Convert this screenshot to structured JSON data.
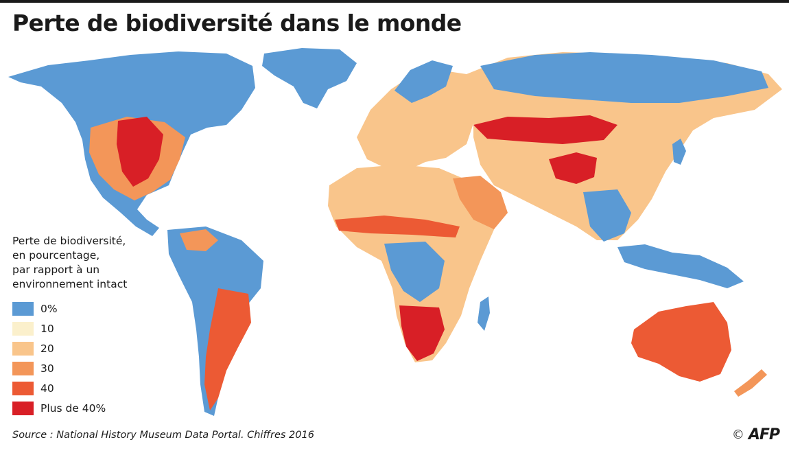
{
  "title": "Perte de biodiversité dans le monde",
  "legend": {
    "title_lines": [
      "Perte de biodiversité,",
      "en pourcentage,",
      "par rapport à un",
      "environnement intact"
    ],
    "items": [
      {
        "label": "0%",
        "color": "#5b9ad4"
      },
      {
        "label": "10",
        "color": "#fbf0cc"
      },
      {
        "label": "20",
        "color": "#f9c58b"
      },
      {
        "label": "30",
        "color": "#f39659"
      },
      {
        "label": "40",
        "color": "#ec5a34"
      },
      {
        "label": "Plus de 40%",
        "color": "#d81f26"
      }
    ]
  },
  "source": "Source : National History Museum Data Portal. Chiffres 2016",
  "credit": {
    "copyright": "©",
    "logo": "AFP"
  }
}
